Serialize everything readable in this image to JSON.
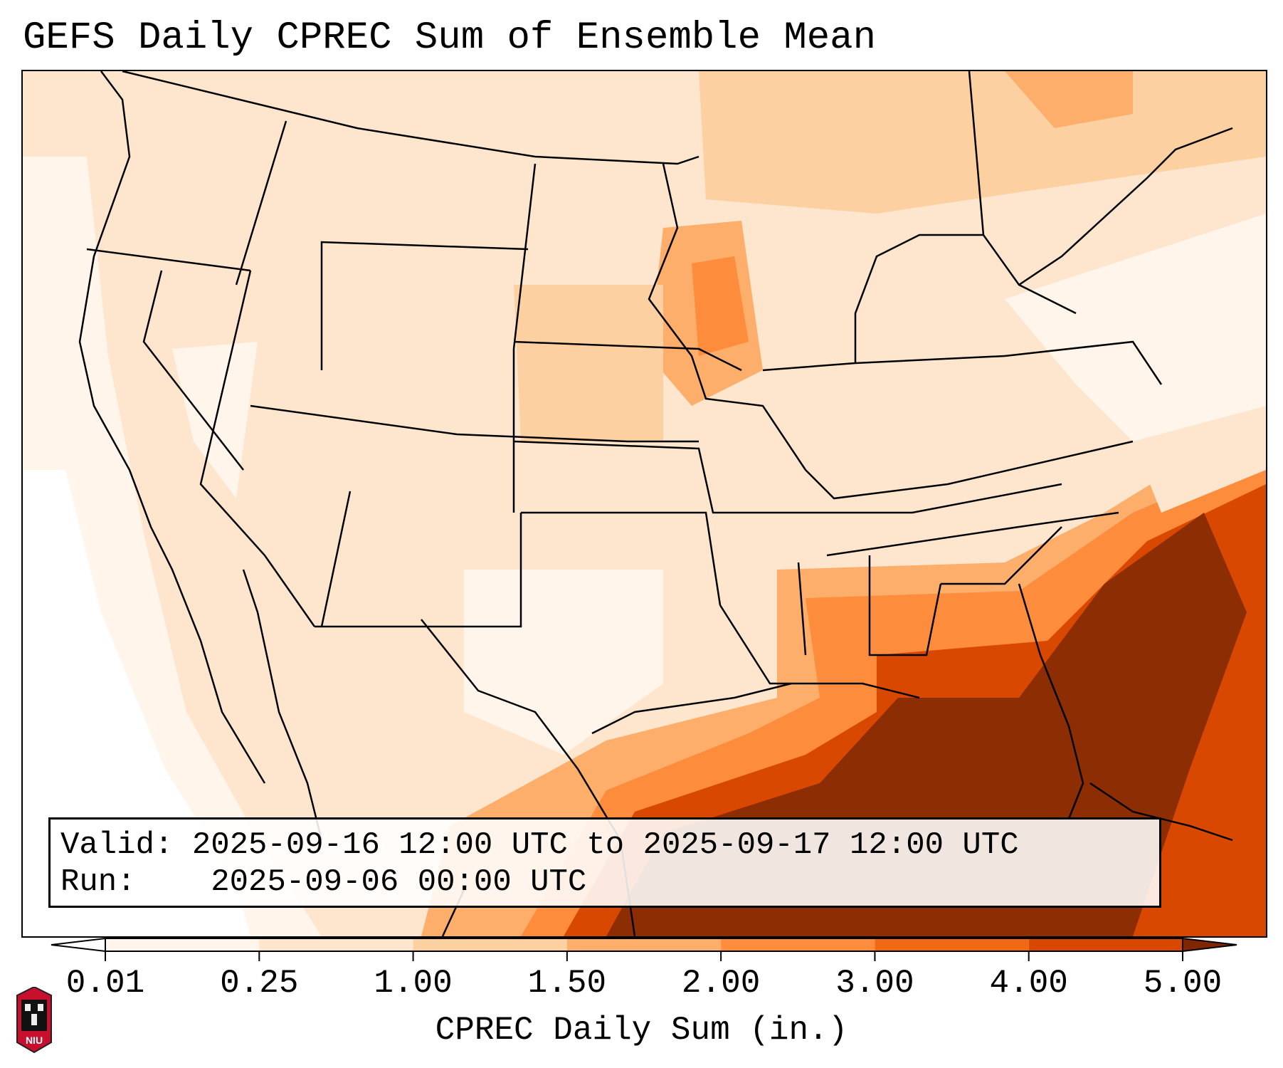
{
  "title": "GEFS Daily CPREC Sum of Ensemble Mean",
  "info": {
    "valid_label": "Valid:",
    "valid_value": "2025-09-16 12:00 UTC to 2025-09-17 12:00 UTC",
    "run_label": "Run:",
    "run_value": "2025-09-06 00:00 UTC"
  },
  "colorbar": {
    "label": "CPREC Daily Sum (in.)",
    "ticks": [
      "0.01",
      "0.25",
      "1.00",
      "1.50",
      "2.00",
      "3.00",
      "4.00",
      "5.00"
    ],
    "colors": [
      "#fff5eb",
      "#fee6ce",
      "#fdd0a2",
      "#fdae6b",
      "#fd8d3c",
      "#f16913",
      "#d94801",
      "#8c2d04"
    ],
    "under_color": "#ffffff",
    "over_color": "#7f2704"
  },
  "logo": {
    "text": "NIU",
    "icon": "niu-logo-icon"
  },
  "map": {
    "icon": "precipitation-map",
    "states_outline_color": "#000000"
  }
}
